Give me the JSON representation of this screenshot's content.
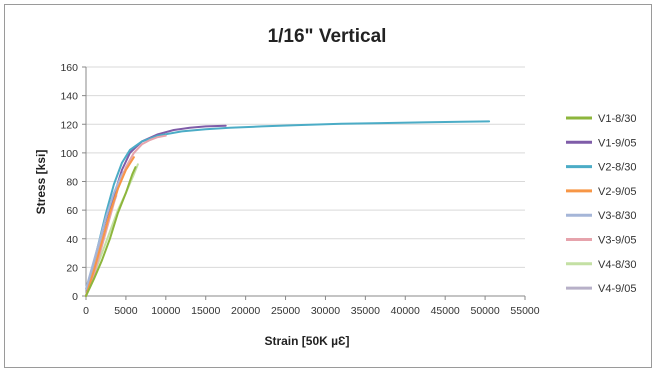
{
  "chart_data": {
    "type": "line",
    "title": "1/16\" Vertical",
    "xlabel": "Strain [50K µƐ]",
    "ylabel": "Stress [ksi]",
    "xlim": [
      0,
      55000
    ],
    "ylim": [
      0,
      160
    ],
    "xticks": [
      0,
      5000,
      10000,
      15000,
      20000,
      25000,
      30000,
      35000,
      40000,
      45000,
      50000,
      55000
    ],
    "yticks": [
      0,
      20,
      40,
      60,
      80,
      100,
      120,
      140,
      160
    ],
    "grid": "horizontal",
    "legend": "right",
    "series": [
      {
        "name": "V1-8/30",
        "color": "#8db63c",
        "x": [
          0,
          1000,
          2000,
          3000,
          4000,
          5000,
          5800,
          6200
        ],
        "y": [
          0,
          12,
          25,
          40,
          58,
          72,
          85,
          90
        ]
      },
      {
        "name": "V1-9/05",
        "color": "#7f5ca8",
        "x": [
          0,
          500,
          1500,
          2500,
          3500,
          4500,
          5500,
          7000,
          9000,
          11000,
          13000,
          15000,
          17500
        ],
        "y": [
          0,
          10,
          30,
          50,
          70,
          88,
          100,
          108,
          113,
          116,
          117.5,
          118.5,
          119
        ]
      },
      {
        "name": "V2-8/30",
        "color": "#4bacc6",
        "x": [
          0,
          500,
          1500,
          2500,
          3500,
          4500,
          5500,
          7000,
          9000,
          12000,
          15000,
          18000,
          22000,
          27000,
          32000,
          37000,
          42000,
          47000,
          50500
        ],
        "y": [
          0,
          12,
          35,
          58,
          78,
          93,
          102,
          108,
          112,
          115,
          116.5,
          117.5,
          118.5,
          119.5,
          120.3,
          120.8,
          121.3,
          121.7,
          122
        ]
      },
      {
        "name": "V2-9/05",
        "color": "#f79646",
        "x": [
          0,
          1000,
          2000,
          3000,
          4000,
          5000,
          6000
        ],
        "y": [
          0,
          18,
          38,
          58,
          75,
          88,
          97
        ]
      },
      {
        "name": "V3-8/30",
        "color": "#a5b6d8",
        "x": [
          0,
          500,
          1500,
          2500,
          3500,
          4500,
          5200
        ],
        "y": [
          5,
          15,
          35,
          55,
          72,
          85,
          90
        ]
      },
      {
        "name": "V3-9/05",
        "color": "#e6a3ac",
        "x": [
          0,
          1000,
          2000,
          3000,
          4000,
          5000,
          6000,
          7000,
          8000,
          9000,
          10000
        ],
        "y": [
          0,
          15,
          35,
          55,
          75,
          90,
          100,
          106,
          109,
          111,
          112
        ]
      },
      {
        "name": "V4-8/30",
        "color": "#c4e0a4",
        "x": [
          0,
          1000,
          2000,
          3000,
          4000,
          5000,
          6000,
          6500
        ],
        "y": [
          0,
          15,
          30,
          45,
          60,
          72,
          85,
          92
        ]
      },
      {
        "name": "V4-9/05",
        "color": "#b7b0c8",
        "x": [
          0,
          1000,
          2000,
          3000,
          3800
        ],
        "y": [
          0,
          20,
          40,
          58,
          70
        ]
      }
    ]
  }
}
